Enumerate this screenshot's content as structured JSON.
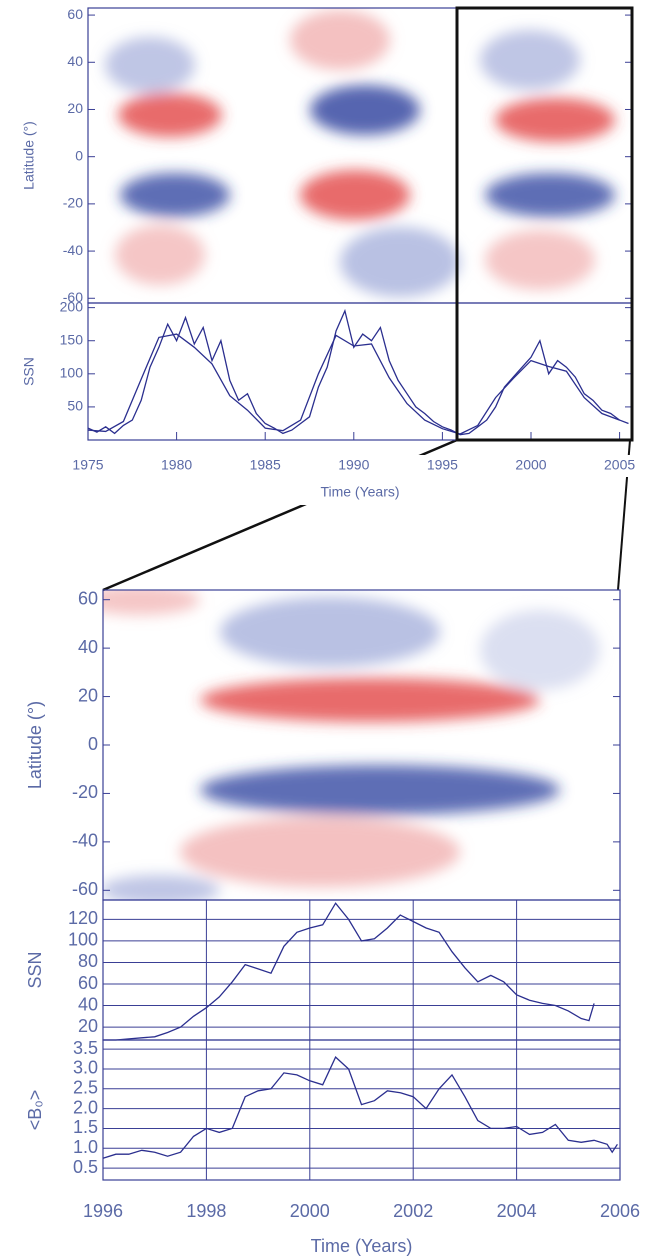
{
  "chart_data": [
    {
      "type": "heatmap",
      "ylabel": "Latitude (°)",
      "ylim": [
        -62,
        63
      ],
      "yticks": [
        -60,
        -40,
        -20,
        0,
        20,
        40,
        60
      ]
    },
    {
      "type": "line",
      "ylabel": "SSN",
      "xlabel": "Time (Years)",
      "xlim": [
        1975,
        2005.7
      ],
      "xticks": [
        1975,
        1980,
        1985,
        1990,
        1995,
        2000,
        2005
      ],
      "ylim": [
        0,
        207
      ],
      "yticks": [
        50,
        100,
        150,
        200
      ],
      "series": [
        {
          "color": "#2b2f8f",
          "x": [
            1975,
            1975.5,
            1976,
            1976.5,
            1977,
            1977.5,
            1978,
            1978.5,
            1979,
            1979.5,
            1980,
            1980.5,
            1981,
            1981.5,
            1982,
            1982.5,
            1983,
            1983.5,
            1984,
            1984.5,
            1985,
            1985.5,
            1986,
            1986.5,
            1987,
            1987.5,
            1988,
            1988.5,
            1989,
            1989.5,
            1990,
            1990.5,
            1991,
            1991.5,
            1992,
            1992.5,
            1993,
            1993.5,
            1994,
            1994.5,
            1995,
            1995.5,
            1996,
            1996.5,
            1997,
            1997.5,
            1998,
            1998.5,
            1999,
            1999.5,
            2000,
            2000.5,
            2001,
            2001.5,
            2002,
            2002.5,
            2003,
            2003.5,
            2004,
            2004.5,
            2005,
            2005.5
          ],
          "values": [
            18,
            12,
            20,
            10,
            22,
            30,
            60,
            110,
            140,
            175,
            150,
            185,
            145,
            170,
            120,
            150,
            90,
            60,
            70,
            40,
            25,
            18,
            10,
            15,
            25,
            35,
            80,
            110,
            165,
            195,
            140,
            160,
            150,
            170,
            120,
            90,
            70,
            50,
            40,
            28,
            20,
            15,
            8,
            10,
            20,
            30,
            50,
            80,
            95,
            110,
            125,
            150,
            100,
            120,
            110,
            95,
            70,
            60,
            45,
            40,
            30,
            25
          ]
        },
        {
          "color": "#2b2f8f",
          "x": [
            1975,
            1976,
            1977,
            1978,
            1979,
            1980,
            1981,
            1982,
            1983,
            1984,
            1985,
            1986,
            1987,
            1988,
            1989,
            1990,
            1991,
            1992,
            1993,
            1994,
            1995,
            1996,
            1997,
            1998,
            1999,
            2000,
            2001,
            2002,
            2003,
            2004,
            2005
          ],
          "values": [
            15,
            13,
            28,
            92,
            155,
            160,
            140,
            115,
            67,
            45,
            18,
            14,
            30,
            100,
            158,
            142,
            145,
            94,
            55,
            30,
            17,
            9,
            22,
            64,
            93,
            120,
            111,
            104,
            64,
            40,
            30
          ]
        }
      ]
    },
    {
      "type": "heatmap",
      "ylabel": "Latitude (°)",
      "ylim": [
        -64,
        64
      ],
      "yticks": [
        -60,
        -40,
        -20,
        0,
        20,
        40,
        60
      ]
    },
    {
      "type": "line",
      "ylabel": "SSN",
      "grid": true,
      "xlim": [
        1996,
        2006
      ],
      "xticks": [
        1996,
        1998,
        2000,
        2002,
        2004,
        2006
      ],
      "ylim": [
        8,
        138
      ],
      "yticks": [
        20,
        40,
        60,
        80,
        100,
        120
      ],
      "series": [
        {
          "color": "#2b2f8f",
          "x": [
            1996,
            1996.25,
            1996.5,
            1996.75,
            1997,
            1997.25,
            1997.5,
            1997.75,
            1998,
            1998.25,
            1998.5,
            1998.75,
            1999,
            1999.25,
            1999.5,
            1999.75,
            2000,
            2000.25,
            2000.5,
            2000.75,
            2001,
            2001.25,
            2001.5,
            2001.75,
            2002,
            2002.25,
            2002.5,
            2002.75,
            2003,
            2003.25,
            2003.5,
            2003.75,
            2004,
            2004.25,
            2004.5,
            2004.75,
            2005,
            2005.25,
            2005.4,
            2005.5
          ],
          "values": [
            8,
            8,
            9,
            10,
            11,
            15,
            20,
            30,
            38,
            48,
            62,
            78,
            74,
            70,
            95,
            108,
            112,
            115,
            135,
            120,
            100,
            102,
            112,
            124,
            118,
            112,
            108,
            90,
            75,
            62,
            68,
            62,
            50,
            45,
            42,
            40,
            35,
            28,
            26,
            42
          ]
        }
      ]
    },
    {
      "type": "line",
      "ylabel": "<B₀>",
      "xlabel": "Time (Years)",
      "grid": true,
      "xlim": [
        1996,
        2006
      ],
      "xticks": [
        1996,
        1998,
        2000,
        2002,
        2004,
        2006
      ],
      "ylim": [
        0.2,
        3.73
      ],
      "yticks": [
        0.5,
        {
          "value": 1,
          "label": "1.0"
        },
        1.5,
        {
          "value": 2,
          "label": "2.0"
        },
        2.5,
        {
          "value": 3,
          "label": "3.0"
        },
        3.5
      ],
      "series": [
        {
          "color": "#2b2f8f",
          "x": [
            1996,
            1996.25,
            1996.5,
            1996.75,
            1997,
            1997.25,
            1997.5,
            1997.75,
            1998,
            1998.25,
            1998.5,
            1998.75,
            1999,
            1999.25,
            1999.5,
            1999.75,
            2000,
            2000.25,
            2000.5,
            2000.75,
            2001,
            2001.25,
            2001.5,
            2001.75,
            2002,
            2002.25,
            2002.5,
            2002.75,
            2003,
            2003.25,
            2003.5,
            2003.75,
            2004,
            2004.25,
            2004.5,
            2004.75,
            2005,
            2005.25,
            2005.5,
            2005.75,
            2005.85,
            2005.95
          ],
          "values": [
            0.75,
            0.85,
            0.85,
            0.95,
            0.9,
            0.8,
            0.9,
            1.3,
            1.5,
            1.4,
            1.5,
            2.3,
            2.45,
            2.5,
            2.9,
            2.85,
            2.7,
            2.6,
            3.3,
            3.0,
            2.1,
            2.2,
            2.45,
            2.4,
            2.3,
            2.0,
            2.5,
            2.85,
            2.3,
            1.7,
            1.5,
            1.5,
            1.55,
            1.35,
            1.4,
            1.6,
            1.2,
            1.15,
            1.2,
            1.1,
            0.9,
            1.1
          ]
        }
      ]
    }
  ]
}
